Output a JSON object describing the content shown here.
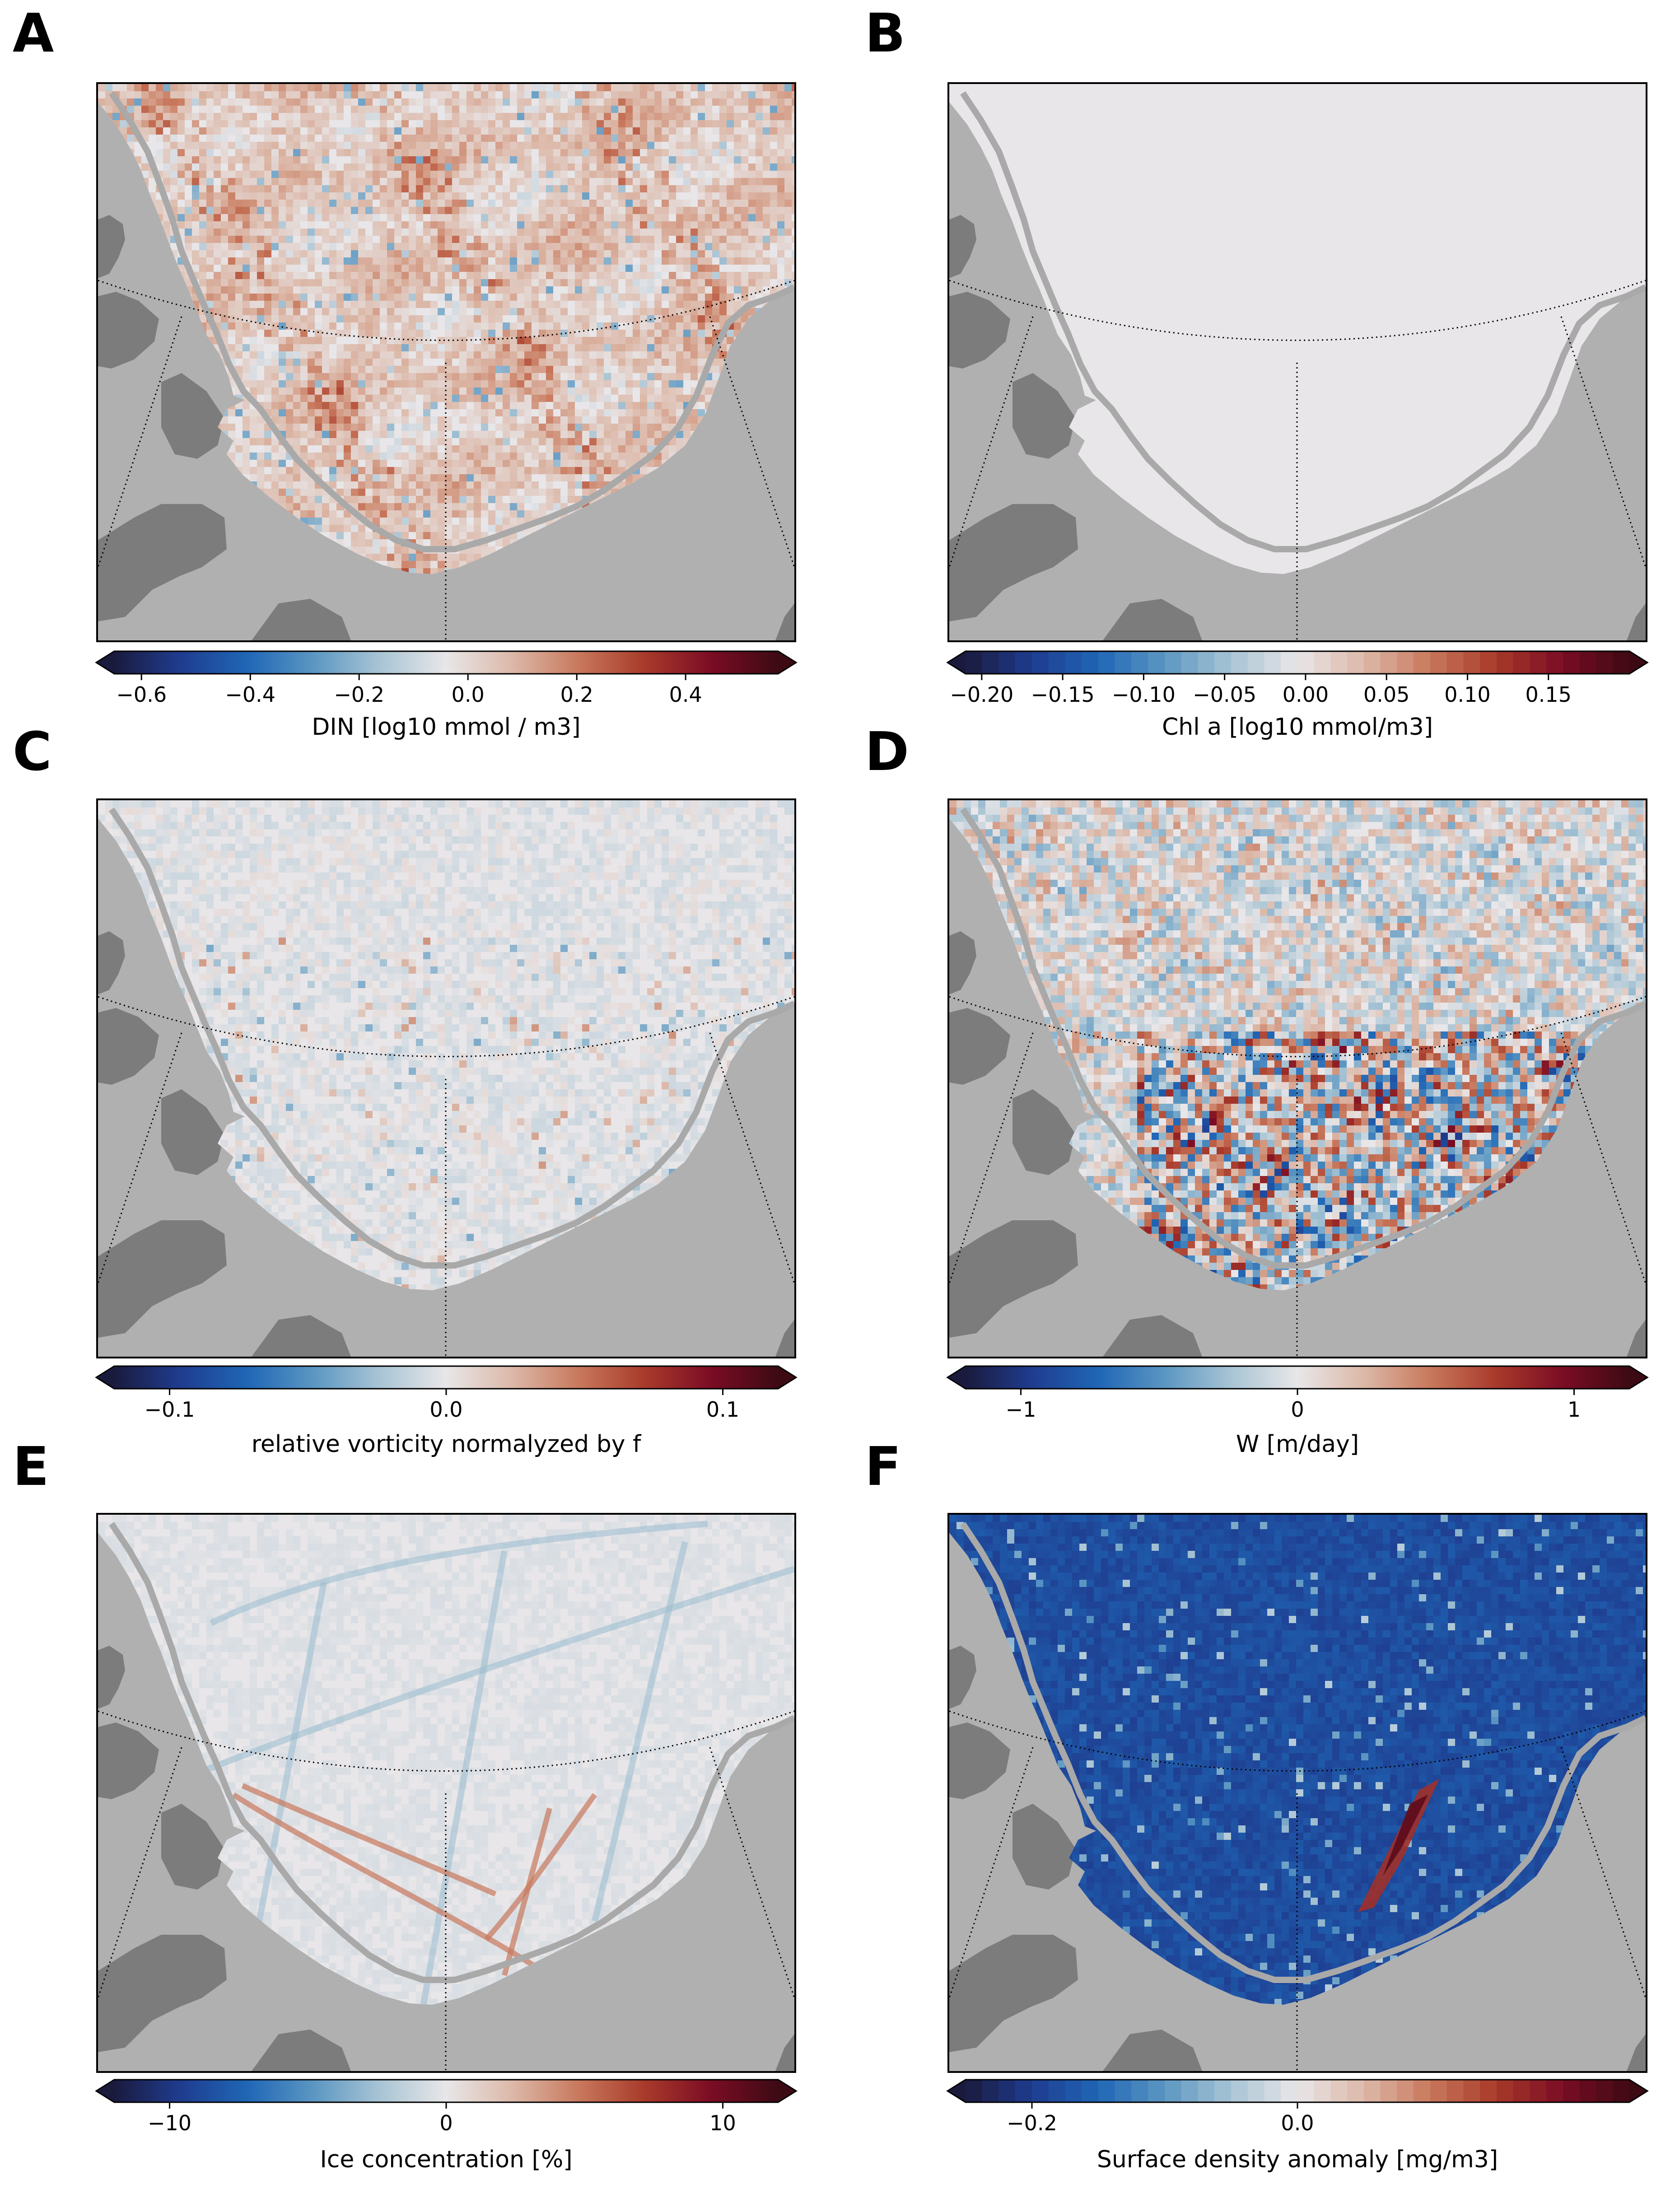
{
  "colors": {
    "land_dark": "#7c7c7c",
    "land_light": "#b0b0b0",
    "coast_line": "#a9a9a9",
    "ocean_neutral": "#e8e6e8",
    "diverging_scale": [
      "#1a1a3d",
      "#1f3c8f",
      "#1f66b5",
      "#5b96c2",
      "#a8c4d4",
      "#e8e6e8",
      "#dcb8a8",
      "#c8785c",
      "#a8392a",
      "#7a0c24",
      "#3d0a14"
    ]
  },
  "panels": [
    {
      "letter": "A",
      "field_style": "mostly_red",
      "colorbar": {
        "label": "DIN [log10 mmol / m3]",
        "vmin": -0.65,
        "vmax": 0.57,
        "discrete": false,
        "ticks": [
          -0.6,
          -0.4,
          -0.2,
          0.0,
          0.2,
          0.4
        ],
        "tick_labels": [
          "−0.6",
          "−0.4",
          "−0.2",
          "0.0",
          "0.2",
          "0.4"
        ]
      }
    },
    {
      "letter": "B",
      "field_style": "flat",
      "colorbar": {
        "label": "Chl a [log10 mmol/m3]",
        "vmin": -0.21,
        "vmax": 0.2,
        "discrete": true,
        "ticks": [
          -0.2,
          -0.15,
          -0.1,
          -0.05,
          0.0,
          0.05,
          0.1,
          0.15
        ],
        "tick_labels": [
          "−0.20",
          "−0.15",
          "−0.10",
          "−0.05",
          "0.00",
          "0.05",
          "0.10",
          "0.15"
        ]
      }
    },
    {
      "letter": "C",
      "field_style": "light_mixed",
      "colorbar": {
        "label": "relative vorticity normalyzed by f",
        "vmin": -0.12,
        "vmax": 0.12,
        "discrete": false,
        "ticks": [
          -0.1,
          0.0,
          0.1
        ],
        "tick_labels": [
          "−0.1",
          "0.0",
          "0.1"
        ]
      }
    },
    {
      "letter": "D",
      "field_style": "strong_mixed",
      "colorbar": {
        "label": "W [m/day]",
        "vmin": -1.2,
        "vmax": 1.2,
        "discrete": false,
        "ticks": [
          -1,
          0,
          1
        ],
        "tick_labels": [
          "−1",
          "0",
          "1"
        ]
      }
    },
    {
      "letter": "E",
      "field_style": "streaks",
      "colorbar": {
        "label": "Ice concentration [%]",
        "vmin": -12,
        "vmax": 12,
        "discrete": false,
        "ticks": [
          -10,
          0,
          10
        ],
        "tick_labels": [
          "−10",
          "0",
          "10"
        ]
      }
    },
    {
      "letter": "F",
      "field_style": "blue",
      "colorbar": {
        "label": "Surface density anomaly [mg/m3]",
        "vmin": -0.25,
        "vmax": 0.25,
        "discrete": true,
        "ticks": [
          -0.2,
          0.0
        ],
        "tick_labels": [
          "−0.2",
          "0.0"
        ]
      }
    }
  ]
}
